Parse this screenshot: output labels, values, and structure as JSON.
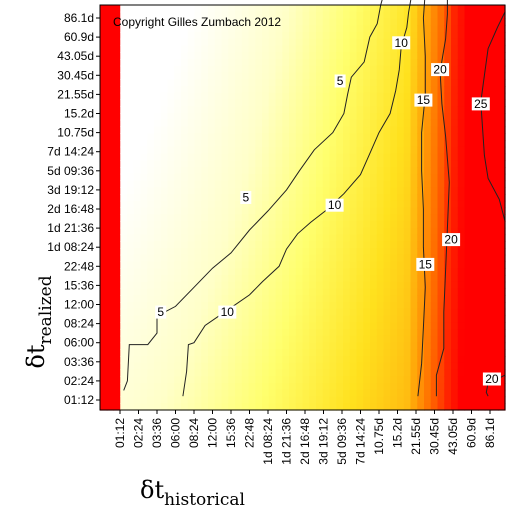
{
  "chart_data": {
    "type": "heatmap",
    "title": "",
    "annotation": "Copyright Gilles Zumbach 2012",
    "xlabel": {
      "symbol": "δt",
      "subscript": "historical"
    },
    "ylabel": {
      "symbol": "δt",
      "subscript": "realized"
    },
    "x_ticks": [
      "01:12",
      "02:24",
      "03:36",
      "06:00",
      "08:24",
      "12:00",
      "15:36",
      "22:48",
      "1d 08:24",
      "1d 21:36",
      "2d 16:48",
      "3d 19:12",
      "5d 09:36",
      "7d 14:24",
      "10.75d",
      "15.2d",
      "21.55d",
      "30.45d",
      "43.05d",
      "60.9d",
      "86.1d"
    ],
    "y_ticks": [
      "01:12",
      "02:24",
      "03:36",
      "06:00",
      "08:24",
      "12:00",
      "15:36",
      "22:48",
      "1d 08:24",
      "1d 21:36",
      "2d 16:48",
      "3d 19:12",
      "5d 09:36",
      "7d 14:24",
      "10.75d",
      "15.2d",
      "21.55d",
      "30.45d",
      "43.05d",
      "60.9d",
      "86.1d"
    ],
    "contour_levels": [
      5,
      10,
      15,
      20,
      25
    ],
    "contour_labels": [
      {
        "text": "5",
        "x": 2.2,
        "y": 4.6
      },
      {
        "text": "5",
        "x": 6.8,
        "y": 10.6
      },
      {
        "text": "5",
        "x": 11.9,
        "y": 16.7
      },
      {
        "text": "10",
        "x": 5.8,
        "y": 4.6
      },
      {
        "text": "10",
        "x": 11.6,
        "y": 10.2
      },
      {
        "text": "10",
        "x": 15.2,
        "y": 18.7
      },
      {
        "text": "15",
        "x": 16.5,
        "y": 7.1
      },
      {
        "text": "15",
        "x": 16.4,
        "y": 15.7
      },
      {
        "text": "20",
        "x": 17.9,
        "y": 8.4
      },
      {
        "text": "20",
        "x": 17.3,
        "y": 17.3
      },
      {
        "text": "20",
        "x": 20.1,
        "y": 1.1
      },
      {
        "text": "25",
        "x": 19.5,
        "y": 15.5
      }
    ],
    "contours": [
      {
        "level": 5,
        "points": [
          [
            0.2,
            0.5
          ],
          [
            0.4,
            1.0
          ],
          [
            0.5,
            2.9
          ],
          [
            1.5,
            2.9
          ],
          [
            2.0,
            3.5
          ],
          [
            2.0,
            4.4
          ],
          [
            3.0,
            4.9
          ],
          [
            4.0,
            5.9
          ],
          [
            5.0,
            6.9
          ],
          [
            6.0,
            7.7
          ],
          [
            7.0,
            8.9
          ],
          [
            8.0,
            9.9
          ],
          [
            9.0,
            11.0
          ],
          [
            9.7,
            12.0
          ],
          [
            10.5,
            13.1
          ],
          [
            11.5,
            14.0
          ],
          [
            12.1,
            15.0
          ],
          [
            12.3,
            16.0
          ],
          [
            12.5,
            16.9
          ],
          [
            13.2,
            17.7
          ],
          [
            13.5,
            19.0
          ],
          [
            13.9,
            19.7
          ],
          [
            14.1,
            20.7
          ],
          [
            14.3,
            21.4
          ]
        ]
      },
      {
        "level": 10,
        "points": [
          [
            3.4,
            0.2
          ],
          [
            3.6,
            1.5
          ],
          [
            3.7,
            2.9
          ],
          [
            4.0,
            3.0
          ],
          [
            4.6,
            3.9
          ],
          [
            5.8,
            4.7
          ],
          [
            7.0,
            5.5
          ],
          [
            7.7,
            6.2
          ],
          [
            8.6,
            7.0
          ],
          [
            9.0,
            7.9
          ],
          [
            9.6,
            8.7
          ],
          [
            10.3,
            9.3
          ],
          [
            11.1,
            9.9
          ],
          [
            12.1,
            10.8
          ],
          [
            13.0,
            11.8
          ],
          [
            13.5,
            12.9
          ],
          [
            14.0,
            14.0
          ],
          [
            14.6,
            15.0
          ],
          [
            14.9,
            16.2
          ],
          [
            15.1,
            17.3
          ],
          [
            15.2,
            18.5
          ],
          [
            15.5,
            19.5
          ],
          [
            15.6,
            20.3
          ],
          [
            15.8,
            21.4
          ]
        ]
      },
      {
        "level": 15,
        "points": [
          [
            16.1,
            0.2
          ],
          [
            16.3,
            1.9
          ],
          [
            16.4,
            3.8
          ],
          [
            16.5,
            5.9
          ],
          [
            16.4,
            8.0
          ],
          [
            16.4,
            10.0
          ],
          [
            16.3,
            12.0
          ],
          [
            16.3,
            14.0
          ],
          [
            16.5,
            16.0
          ],
          [
            16.5,
            18.0
          ],
          [
            16.4,
            20.0
          ],
          [
            16.5,
            21.4
          ]
        ]
      },
      {
        "level": 20,
        "points": [
          [
            17.1,
            0.2
          ],
          [
            17.1,
            1.3
          ],
          [
            17.5,
            2.7
          ],
          [
            17.5,
            4.6
          ],
          [
            17.6,
            6.8
          ],
          [
            17.7,
            9.0
          ],
          [
            17.8,
            11.4
          ],
          [
            17.6,
            13.8
          ],
          [
            17.4,
            15.5
          ],
          [
            17.3,
            17.2
          ],
          [
            17.6,
            18.9
          ],
          [
            17.7,
            20.2
          ],
          [
            17.7,
            21.4
          ]
        ]
      },
      {
        "level": 20,
        "points": [
          [
            19.9,
            0.2
          ],
          [
            19.8,
            0.4
          ],
          [
            19.9,
            0.9
          ],
          [
            20.4,
            1.1
          ],
          [
            20.8,
            1.3
          ]
        ]
      },
      {
        "level": 25,
        "points": [
          [
            20.8,
            9.4
          ],
          [
            20.5,
            10.5
          ],
          [
            19.9,
            11.6
          ],
          [
            19.7,
            12.8
          ],
          [
            19.6,
            14.2
          ],
          [
            19.5,
            15.6
          ],
          [
            19.7,
            17.0
          ],
          [
            19.9,
            18.4
          ],
          [
            20.4,
            19.5
          ],
          [
            20.8,
            20.3
          ]
        ]
      }
    ],
    "colors": {
      "low": "#ffffff",
      "mid_low": "#ffff7a",
      "mid": "#ffdd00",
      "mid_high": "#ff8c00",
      "high": "#ff0000"
    }
  }
}
